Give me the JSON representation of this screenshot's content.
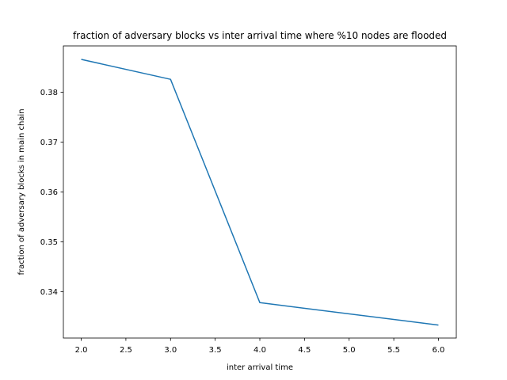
{
  "chart_data": {
    "type": "line",
    "title": "fraction of adversary blocks vs inter arrival time where %10 nodes are flooded",
    "xlabel": "inter arrival time",
    "ylabel": "fraction of adversary blocks in main chain",
    "series": [
      {
        "x": [
          2.0,
          3.0,
          4.0,
          6.0
        ],
        "y": [
          0.3866,
          0.3826,
          0.3378,
          0.3333
        ],
        "color": "#1f77b4"
      }
    ],
    "xlim": [
      1.8,
      6.2
    ],
    "ylim": [
      0.3307,
      0.3893
    ],
    "xticks": [
      2.0,
      2.5,
      3.0,
      3.5,
      4.0,
      4.5,
      5.0,
      5.5,
      6.0
    ],
    "xtick_labels": [
      "2.0",
      "2.5",
      "3.0",
      "3.5",
      "4.0",
      "4.5",
      "5.0",
      "5.5",
      "6.0"
    ],
    "yticks": [
      0.34,
      0.35,
      0.36,
      0.37,
      0.38
    ],
    "ytick_labels": [
      "0.34",
      "0.35",
      "0.36",
      "0.37",
      "0.38"
    ],
    "grid": false,
    "legend": "none"
  }
}
